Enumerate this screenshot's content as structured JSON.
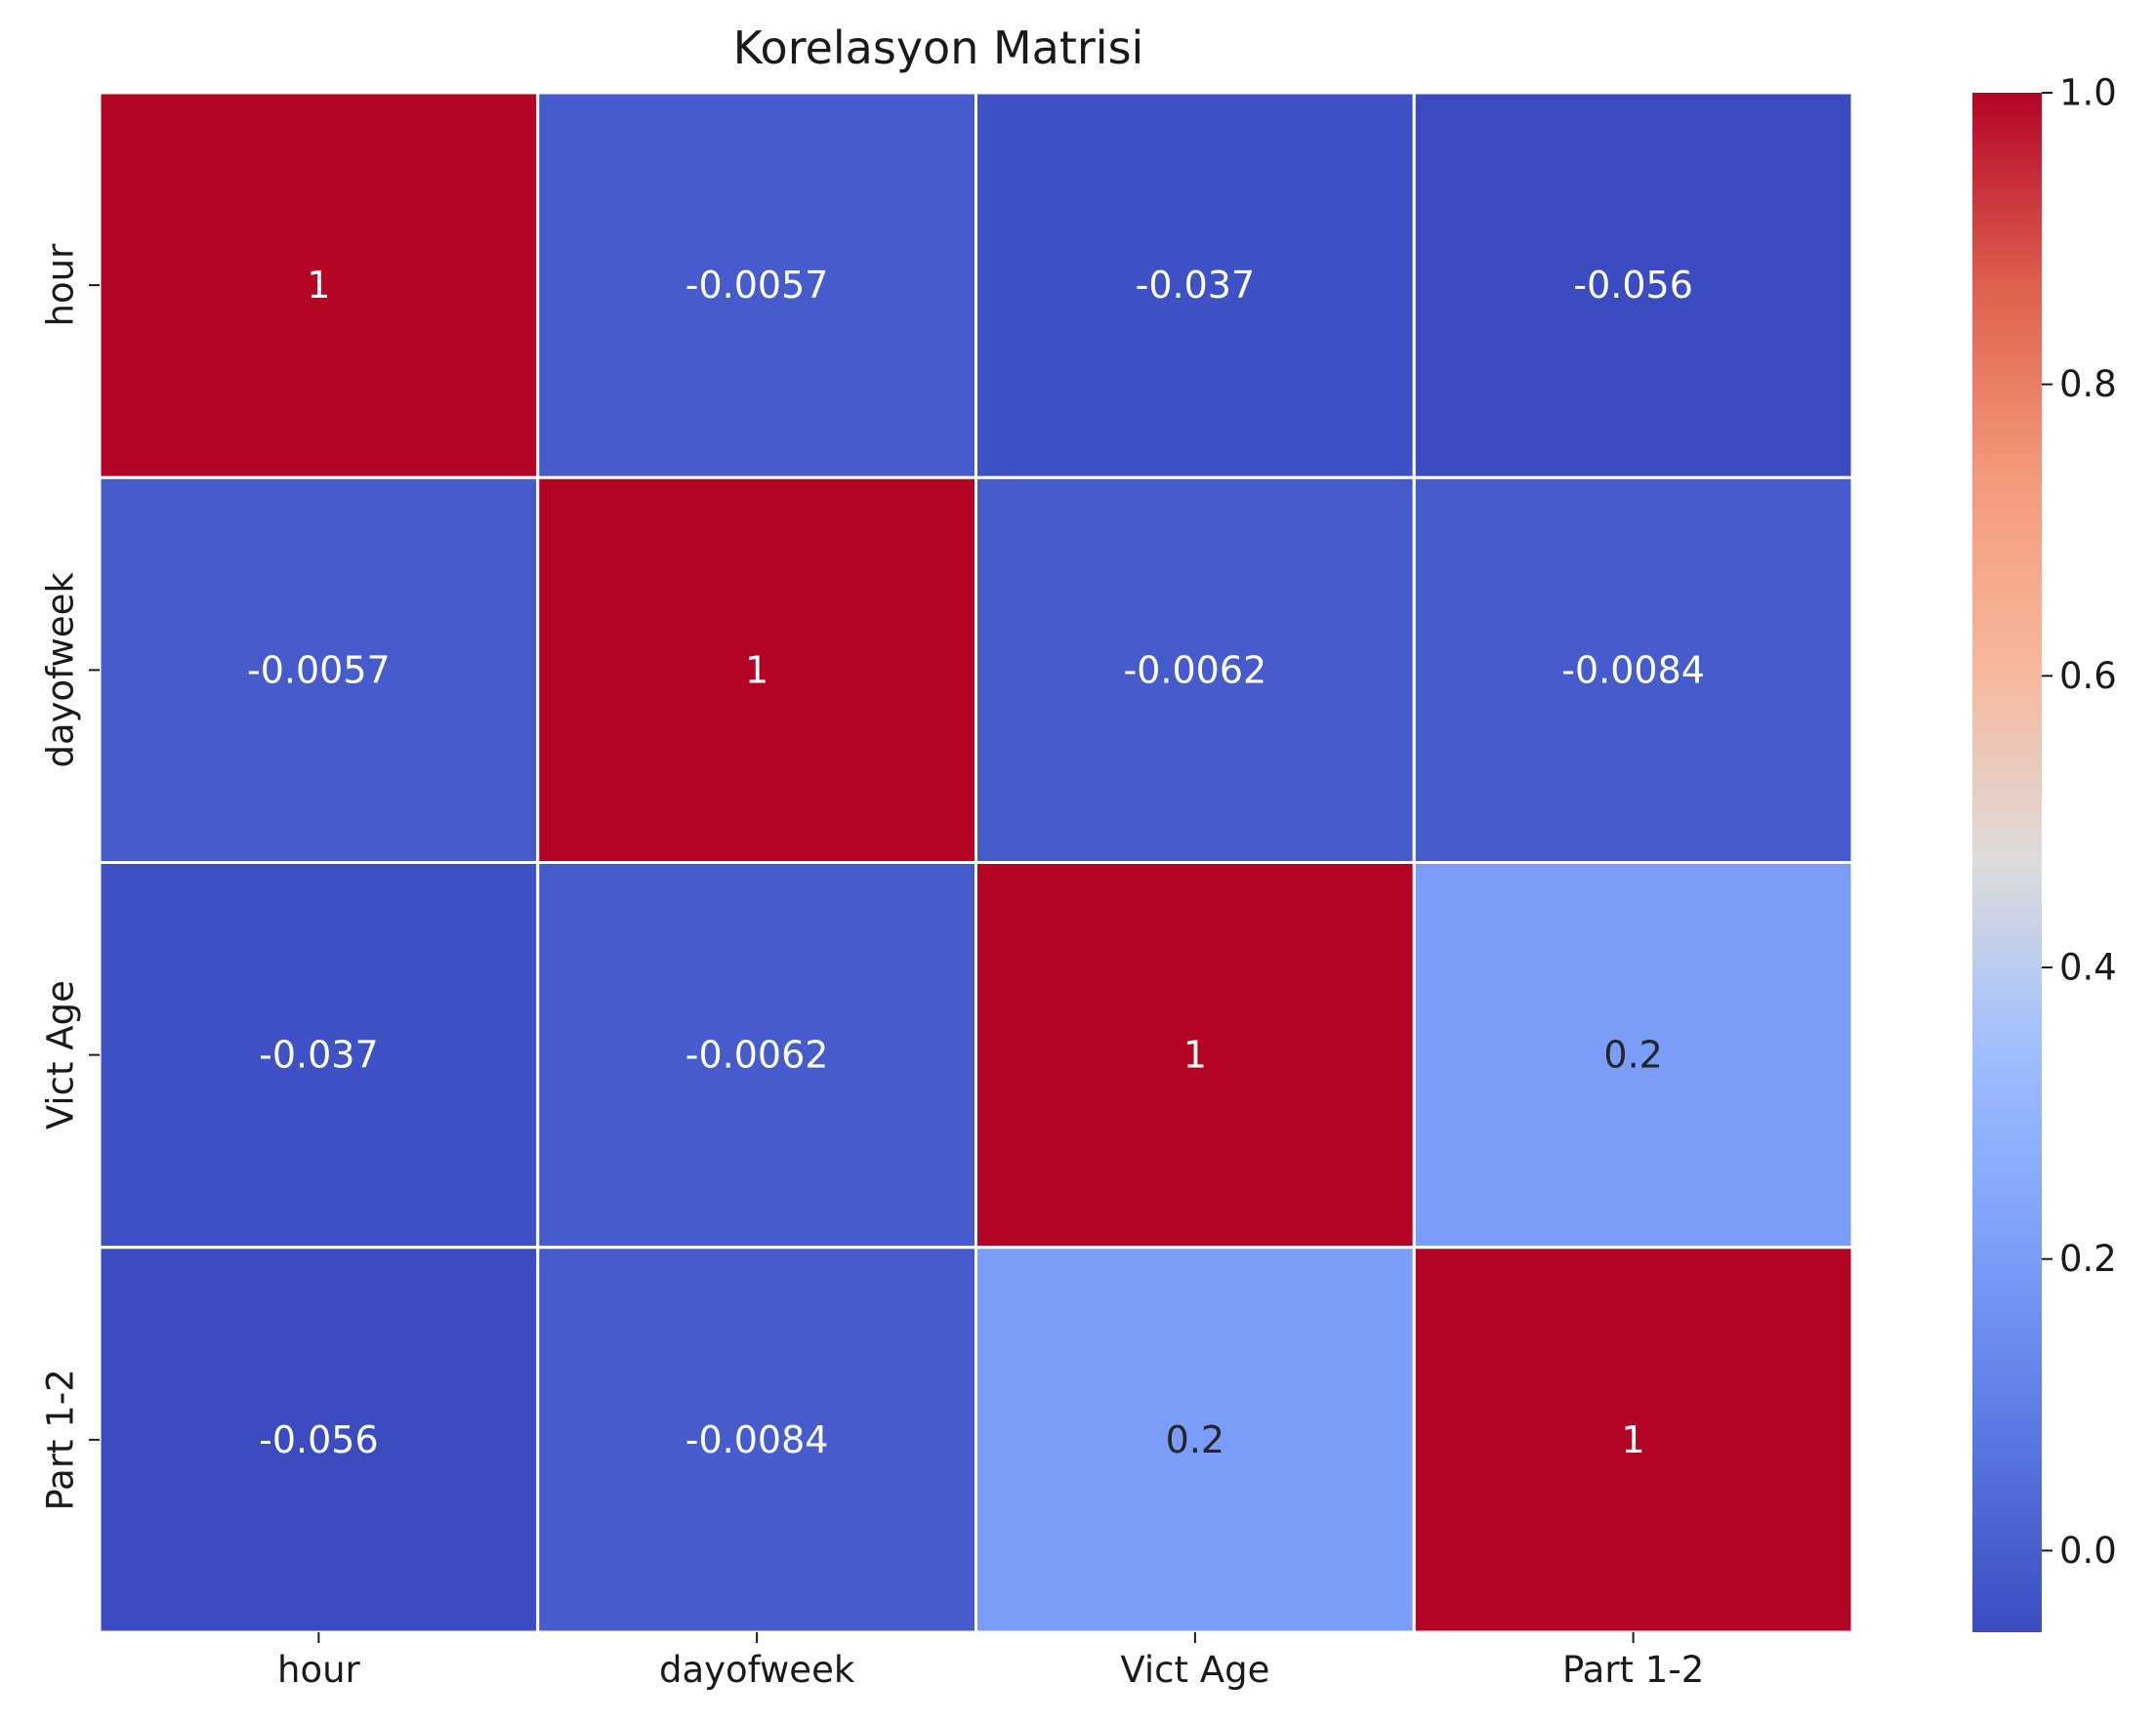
{
  "chart_data": {
    "type": "heatmap",
    "title": "Korelasyon Matrisi",
    "xlabel": "",
    "ylabel": "",
    "x_categories": [
      "hour",
      "dayofweek",
      "Vict Age",
      "Part 1-2"
    ],
    "y_categories": [
      "hour",
      "dayofweek",
      "Vict Age",
      "Part 1-2"
    ],
    "values": [
      [
        1,
        -0.0057,
        -0.037,
        -0.056
      ],
      [
        -0.0057,
        1,
        -0.0062,
        -0.0084
      ],
      [
        -0.037,
        -0.0062,
        1,
        0.2
      ],
      [
        -0.056,
        -0.0084,
        0.2,
        1
      ]
    ],
    "annotations": [
      [
        "1",
        "-0.0057",
        "-0.037",
        "-0.056"
      ],
      [
        "-0.0057",
        "1",
        "-0.0062",
        "-0.0084"
      ],
      [
        "-0.037",
        "-0.0062",
        "1",
        "0.2"
      ],
      [
        "-0.056",
        "-0.0084",
        "0.2",
        "1"
      ]
    ],
    "colormap": "coolwarm",
    "color_range": [
      -0.056,
      1.0
    ],
    "colorbar_ticks": [
      "0.0",
      "0.2",
      "0.4",
      "0.6",
      "0.8",
      "1.0"
    ],
    "colorbar_tick_values": [
      0.0,
      0.2,
      0.4,
      0.6,
      0.8,
      1.0
    ],
    "cell_border_color": "#ffffff",
    "annotation_light_color": "#ffffff",
    "annotation_dark_color": "#262626"
  }
}
